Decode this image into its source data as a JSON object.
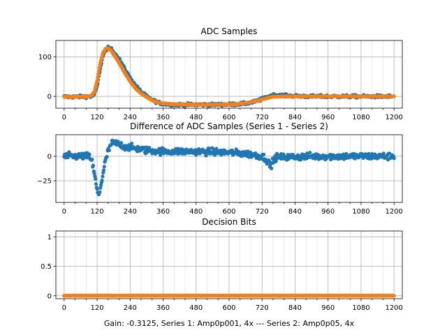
{
  "figure": {
    "caption": "Gain: -0.3125, Series 1: Amp0p001, 4x --- Series 2: Amp0p05, 4x",
    "colors": {
      "series1": "#1f77b4",
      "series2": "#ff7f0e"
    }
  },
  "chart_data": [
    {
      "type": "scatter",
      "title": "ADC Samples",
      "xlim": [
        -30,
        1230
      ],
      "ylim": [
        -30,
        142
      ],
      "xticks": [
        0,
        120,
        240,
        360,
        480,
        600,
        720,
        840,
        960,
        1080,
        1200
      ],
      "yticks": [
        0,
        100
      ],
      "grid": true,
      "series": [
        {
          "key": "series1",
          "color": "#1f77b4",
          "points": [
            [
              0,
              -1
            ],
            [
              60,
              -1
            ],
            [
              100,
              0
            ],
            [
              110,
              5
            ],
            [
              120,
              25
            ],
            [
              130,
              65
            ],
            [
              140,
              100
            ],
            [
              150,
              118
            ],
            [
              160,
              123
            ],
            [
              170,
              121
            ],
            [
              180,
              113
            ],
            [
              200,
              95
            ],
            [
              220,
              70
            ],
            [
              240,
              47
            ],
            [
              260,
              27
            ],
            [
              280,
              12
            ],
            [
              300,
              0
            ],
            [
              320,
              -9
            ],
            [
              340,
              -15
            ],
            [
              360,
              -19
            ],
            [
              400,
              -21
            ],
            [
              480,
              -21
            ],
            [
              560,
              -21
            ],
            [
              620,
              -20
            ],
            [
              660,
              -18
            ],
            [
              690,
              -14
            ],
            [
              720,
              -7
            ],
            [
              740,
              -1
            ],
            [
              760,
              3
            ],
            [
              780,
              4
            ],
            [
              800,
              2
            ],
            [
              840,
              1
            ],
            [
              900,
              0
            ],
            [
              960,
              0
            ],
            [
              1080,
              0
            ],
            [
              1200,
              0
            ]
          ],
          "noise": 2.5
        },
        {
          "key": "series2",
          "color": "#ff7f0e",
          "points": [
            [
              0,
              -1
            ],
            [
              80,
              -1
            ],
            [
              100,
              2
            ],
            [
              110,
              12
            ],
            [
              120,
              40
            ],
            [
              130,
              80
            ],
            [
              140,
              108
            ],
            [
              150,
              121
            ],
            [
              160,
              122
            ],
            [
              170,
              117
            ],
            [
              180,
              107
            ],
            [
              200,
              85
            ],
            [
              220,
              60
            ],
            [
              240,
              38
            ],
            [
              260,
              20
            ],
            [
              280,
              7
            ],
            [
              300,
              -2
            ],
            [
              320,
              -10
            ],
            [
              340,
              -15
            ],
            [
              360,
              -18
            ],
            [
              400,
              -20
            ],
            [
              480,
              -21
            ],
            [
              560,
              -21
            ],
            [
              620,
              -20
            ],
            [
              660,
              -17
            ],
            [
              690,
              -13
            ],
            [
              720,
              -8
            ],
            [
              740,
              -4
            ],
            [
              760,
              -1
            ],
            [
              800,
              0
            ],
            [
              900,
              0
            ],
            [
              1200,
              0
            ]
          ],
          "noise": 0
        }
      ]
    },
    {
      "type": "scatter",
      "title": "Difference of ADC Samples (Series 1 - Series 2)",
      "xlim": [
        -30,
        1230
      ],
      "ylim": [
        -47,
        22
      ],
      "xticks": [
        0,
        120,
        240,
        360,
        480,
        600,
        720,
        840,
        960,
        1080,
        1200
      ],
      "yticks": [
        -25,
        0
      ],
      "grid": true,
      "series": [
        {
          "key": "series1",
          "color": "#1f77b4",
          "points": [
            [
              0,
              0
            ],
            [
              90,
              0
            ],
            [
              100,
              -3
            ],
            [
              110,
              -18
            ],
            [
              120,
              -35
            ],
            [
              125,
              -40
            ],
            [
              130,
              -35
            ],
            [
              140,
              -20
            ],
            [
              150,
              -5
            ],
            [
              160,
              5
            ],
            [
              170,
              12
            ],
            [
              180,
              14
            ],
            [
              200,
              12
            ],
            [
              220,
              10
            ],
            [
              240,
              9
            ],
            [
              260,
              8
            ],
            [
              300,
              6
            ],
            [
              360,
              5
            ],
            [
              480,
              5
            ],
            [
              600,
              4
            ],
            [
              680,
              2
            ],
            [
              720,
              0
            ],
            [
              740,
              -4
            ],
            [
              750,
              -10
            ],
            [
              760,
              -5
            ],
            [
              770,
              -1
            ],
            [
              800,
              -1
            ],
            [
              900,
              0
            ],
            [
              1200,
              0
            ]
          ],
          "noise": 2.5
        }
      ]
    },
    {
      "type": "scatter",
      "title": "Decision Bits",
      "xlim": [
        -30,
        1230
      ],
      "ylim": [
        -0.05,
        1.1
      ],
      "xticks": [
        0,
        120,
        240,
        360,
        480,
        600,
        720,
        840,
        960,
        1080,
        1200
      ],
      "yticks": [
        0.0,
        0.5,
        1.0
      ],
      "grid": true,
      "series": [
        {
          "key": "series1",
          "color": "#1f77b4",
          "points": [
            [
              0,
              0
            ],
            [
              1200,
              0
            ]
          ],
          "noise": 0
        },
        {
          "key": "series2",
          "color": "#ff7f0e",
          "points": [
            [
              0,
              0
            ],
            [
              1200,
              0
            ]
          ],
          "noise": 0
        }
      ]
    }
  ]
}
